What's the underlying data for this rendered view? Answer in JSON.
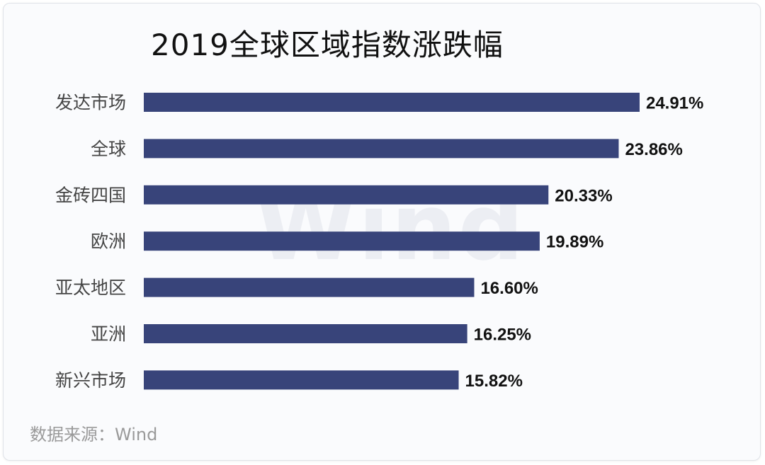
{
  "chart_data": {
    "type": "bar",
    "orientation": "horizontal",
    "title": "2019全球区域指数涨跌幅",
    "categories": [
      "发达市场",
      "全球",
      "金砖四国",
      "欧洲",
      "亚太地区",
      "亚洲",
      "新兴市场"
    ],
    "values": [
      24.91,
      23.86,
      20.33,
      19.89,
      16.6,
      16.25,
      15.82
    ],
    "value_labels": [
      "24.91%",
      "23.86%",
      "20.33%",
      "19.89%",
      "16.60%",
      "16.25%",
      "15.82%"
    ],
    "xlim": [
      0,
      25
    ],
    "grid": false,
    "bar_color": "#38447a"
  },
  "watermark": "Wind",
  "source": "数据来源：Wind"
}
